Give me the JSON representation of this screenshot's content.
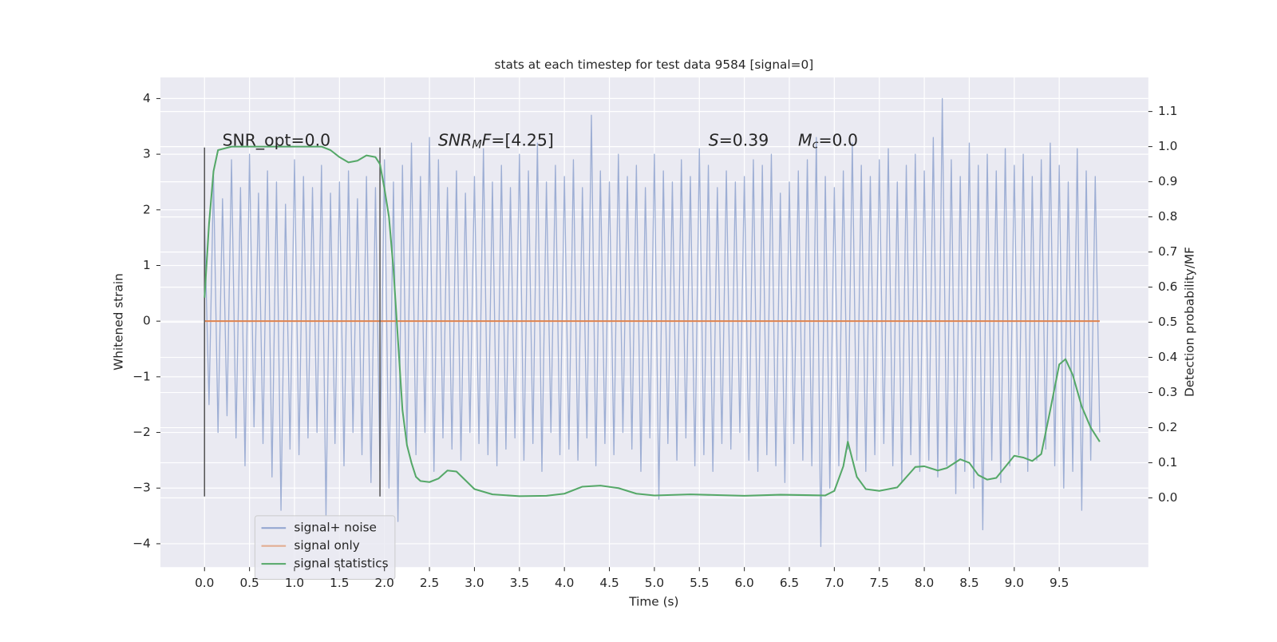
{
  "chart_data": {
    "type": "line",
    "title": "stats at each timestep for test data 9584 [signal=0]",
    "xlabel": "Time (s)",
    "ylabel": "Whitened strain",
    "y2label": "Detection probability/MF",
    "annotations": [
      "SNR_opt=0.0",
      [
        "SNR",
        "M",
        "F",
        "=[4.25]"
      ],
      [
        "S",
        "=0.39"
      ],
      [
        "M",
        "c",
        "=0.0"
      ]
    ],
    "vlines": [
      0,
      1.95
    ],
    "vline_ylim": [
      -3.15,
      3.12
    ],
    "xlim": [
      -0.49,
      10.49
    ],
    "ylim": [
      -4.42,
      4.38
    ],
    "y2lim": [
      -0.197,
      1.197
    ],
    "xticks": [
      {
        "value": 0,
        "label": "0.0"
      },
      0.5,
      {
        "value": 1,
        "label": "1.0"
      },
      1.5,
      {
        "value": 2,
        "label": "2.0"
      },
      2.5,
      {
        "value": 3,
        "label": "3.0"
      },
      3.5,
      {
        "value": 4,
        "label": "4.0"
      },
      4.5,
      {
        "value": 5,
        "label": "5.0"
      },
      5.5,
      {
        "value": 6,
        "label": "6.0"
      },
      6.5,
      {
        "value": 7,
        "label": "7.0"
      },
      7.5,
      {
        "value": 8,
        "label": "8.0"
      },
      8.5,
      {
        "value": 9,
        "label": "9.0"
      },
      9.5
    ],
    "yticks": [
      {
        "value": -4,
        "label": "−4"
      },
      {
        "value": -3,
        "label": "−3"
      },
      {
        "value": -2,
        "label": "−2"
      },
      {
        "value": -1,
        "label": "−1"
      },
      0,
      1,
      2,
      3,
      4
    ],
    "y2ticks": [
      {
        "value": 0,
        "label": "0.0"
      },
      0.1,
      0.2,
      0.3,
      0.4,
      0.5,
      0.6,
      0.7,
      0.8,
      0.9,
      {
        "value": 1,
        "label": "1.0"
      },
      1.1
    ],
    "grid": true,
    "legend": "lower left",
    "series": [
      {
        "name": "signal+ noise",
        "color": "#8fa3cf",
        "x": [
          0,
          0.05,
          0.1,
          0.15,
          0.2,
          0.25,
          0.3,
          0.35,
          0.4,
          0.45,
          0.5,
          0.55,
          0.6,
          0.65,
          0.7,
          0.75,
          0.8,
          0.85,
          0.9,
          0.95,
          1,
          1.05,
          1.1,
          1.15,
          1.2,
          1.25,
          1.3,
          1.35,
          1.4,
          1.45,
          1.5,
          1.55,
          1.6,
          1.65,
          1.7,
          1.75,
          1.8,
          1.85,
          1.9,
          1.95,
          2,
          2.05,
          2.1,
          2.15,
          2.2,
          2.25,
          2.3,
          2.35,
          2.4,
          2.45,
          2.5,
          2.55,
          2.6,
          2.65,
          2.7,
          2.75,
          2.8,
          2.85,
          2.9,
          2.95,
          3,
          3.05,
          3.1,
          3.15,
          3.2,
          3.25,
          3.3,
          3.35,
          3.4,
          3.45,
          3.5,
          3.55,
          3.6,
          3.65,
          3.7,
          3.75,
          3.8,
          3.85,
          3.9,
          3.95,
          4,
          4.05,
          4.1,
          4.15,
          4.2,
          4.25,
          4.3,
          4.35,
          4.4,
          4.45,
          4.5,
          4.55,
          4.6,
          4.65,
          4.7,
          4.75,
          4.8,
          4.85,
          4.9,
          4.95,
          5,
          5.05,
          5.1,
          5.15,
          5.2,
          5.25,
          5.3,
          5.35,
          5.4,
          5.45,
          5.5,
          5.55,
          5.6,
          5.65,
          5.7,
          5.75,
          5.8,
          5.85,
          5.9,
          5.95,
          6,
          6.05,
          6.1,
          6.15,
          6.2,
          6.25,
          6.3,
          6.35,
          6.4,
          6.45,
          6.5,
          6.55,
          6.6,
          6.65,
          6.7,
          6.75,
          6.8,
          6.85,
          6.9,
          6.95,
          7,
          7.05,
          7.1,
          7.15,
          7.2,
          7.25,
          7.3,
          7.35,
          7.4,
          7.45,
          7.5,
          7.55,
          7.6,
          7.65,
          7.7,
          7.75,
          7.8,
          7.85,
          7.9,
          7.95,
          8,
          8.05,
          8.1,
          8.15,
          8.2,
          8.25,
          8.3,
          8.35,
          8.4,
          8.45,
          8.5,
          8.55,
          8.6,
          8.65,
          8.7,
          8.75,
          8.8,
          8.85,
          8.9,
          8.95,
          9,
          9.05,
          9.1,
          9.15,
          9.2,
          9.25,
          9.3,
          9.35,
          9.4,
          9.45,
          9.5,
          9.55,
          9.6,
          9.65,
          9.7,
          9.75,
          9.8,
          9.85,
          9.9,
          9.95
        ],
        "values": [
          1.8,
          -1.5,
          2.6,
          -2.0,
          2.2,
          -1.7,
          2.9,
          -2.1,
          2.4,
          -2.6,
          3.0,
          -1.9,
          2.3,
          -2.2,
          2.7,
          -2.8,
          2.5,
          -3.4,
          2.1,
          -2.3,
          2.9,
          -2.4,
          2.6,
          -2.1,
          2.4,
          -2.0,
          2.8,
          -3.5,
          2.3,
          -2.2,
          2.5,
          -2.6,
          2.7,
          -2.0,
          2.2,
          -2.4,
          2.6,
          -2.9,
          2.4,
          -2.7,
          2.9,
          -3.0,
          2.5,
          -3.6,
          2.8,
          -2.2,
          3.2,
          -2.4,
          2.6,
          -2.0,
          3.3,
          -2.7,
          2.9,
          -2.1,
          2.4,
          -2.3,
          2.7,
          -2.5,
          2.3,
          -2.0,
          2.6,
          -2.2,
          3.1,
          -2.4,
          2.5,
          -2.6,
          2.8,
          -2.3,
          2.4,
          -2.1,
          3.0,
          -2.5,
          2.7,
          -2.2,
          3.2,
          -2.7,
          2.5,
          -2.0,
          2.8,
          -2.4,
          2.6,
          -2.3,
          2.9,
          -2.5,
          2.4,
          -2.1,
          3.7,
          -2.6,
          2.7,
          -2.2,
          2.5,
          -2.4,
          3.0,
          -2.0,
          2.6,
          -2.3,
          2.8,
          -2.7,
          2.4,
          -2.1,
          3.0,
          -3.2,
          2.7,
          -2.2,
          2.5,
          -2.5,
          2.9,
          -2.1,
          2.6,
          -2.6,
          3.1,
          -2.4,
          2.8,
          -2.7,
          2.4,
          -2.2,
          2.7,
          -2.3,
          2.5,
          -2.0,
          2.6,
          -2.5,
          2.9,
          -2.7,
          2.8,
          -2.4,
          3.0,
          -2.6,
          2.3,
          -2.9,
          2.5,
          -2.2,
          2.7,
          -2.5,
          2.9,
          -2.6,
          3.3,
          -4.05,
          2.6,
          -3.0,
          2.4,
          -2.6,
          2.7,
          -2.3,
          3.2,
          -2.5,
          2.8,
          -2.7,
          2.6,
          -2.4,
          2.9,
          -2.2,
          3.1,
          -2.6,
          2.5,
          -2.9,
          2.8,
          -2.4,
          3.0,
          -2.7,
          2.7,
          -2.5,
          3.3,
          -2.8,
          4.0,
          -2.6,
          2.9,
          -3.1,
          2.6,
          -2.7,
          3.2,
          -3.0,
          2.8,
          -3.75,
          3.0,
          -2.5,
          2.7,
          -2.9,
          3.1,
          -2.6,
          2.8,
          -2.4,
          3.0,
          -2.7,
          2.6,
          -2.5,
          2.9,
          -2.3,
          3.2,
          -2.6,
          2.8,
          -3.0,
          2.5,
          -2.7,
          3.1,
          -3.4,
          2.7,
          -2.5,
          2.6,
          -2.0
        ]
      },
      {
        "name": "signal only",
        "color": "#dd8452",
        "x": [
          0,
          9.95
        ],
        "values": [
          0,
          0
        ]
      },
      {
        "name": "signal statistics",
        "color": "#55a868",
        "axis": "y2",
        "x": [
          0,
          0.05,
          0.1,
          0.15,
          0.3,
          0.6,
          1.0,
          1.3,
          1.4,
          1.5,
          1.6,
          1.7,
          1.8,
          1.9,
          1.95,
          2.0,
          2.05,
          2.1,
          2.15,
          2.2,
          2.25,
          2.3,
          2.35,
          2.4,
          2.5,
          2.6,
          2.7,
          2.8,
          2.9,
          3.0,
          3.2,
          3.5,
          3.8,
          4.0,
          4.2,
          4.4,
          4.6,
          4.8,
          5.0,
          5.4,
          6.0,
          6.4,
          6.9,
          7.0,
          7.1,
          7.15,
          7.25,
          7.35,
          7.5,
          7.7,
          7.9,
          8.0,
          8.15,
          8.25,
          8.4,
          8.5,
          8.6,
          8.7,
          8.8,
          9.0,
          9.1,
          9.2,
          9.3,
          9.4,
          9.5,
          9.57,
          9.65,
          9.75,
          9.85,
          9.95
        ],
        "values": [
          0.57,
          0.78,
          0.93,
          0.99,
          1.0,
          1.0,
          1.0,
          1.0,
          0.99,
          0.97,
          0.955,
          0.96,
          0.975,
          0.97,
          0.95,
          0.88,
          0.8,
          0.65,
          0.45,
          0.25,
          0.15,
          0.1,
          0.06,
          0.048,
          0.045,
          0.055,
          0.078,
          0.075,
          0.05,
          0.025,
          0.01,
          0.005,
          0.006,
          0.012,
          0.032,
          0.035,
          0.028,
          0.012,
          0.007,
          0.01,
          0.006,
          0.009,
          0.007,
          0.02,
          0.09,
          0.16,
          0.06,
          0.025,
          0.02,
          0.03,
          0.088,
          0.09,
          0.078,
          0.085,
          0.11,
          0.1,
          0.065,
          0.052,
          0.057,
          0.12,
          0.115,
          0.105,
          0.125,
          0.25,
          0.38,
          0.395,
          0.35,
          0.26,
          0.2,
          0.16
        ]
      }
    ]
  }
}
